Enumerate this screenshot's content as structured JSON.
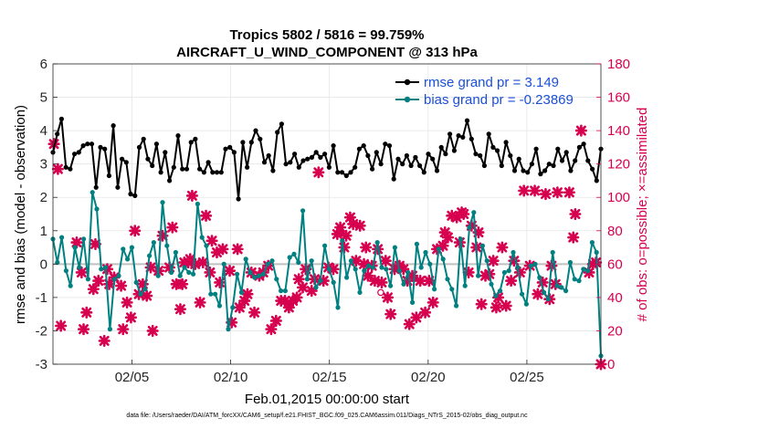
{
  "chart_data": {
    "type": "line",
    "title_line1": "Tropics 5802 / 5816 = 99.759%",
    "title_line2": "AIRCRAFT_U_WIND_COMPONENT @ 313 hPa",
    "xlabel": "Feb.01,2015 00:00:00 start",
    "ylabel_left": "rmse and bias (model - observation)",
    "ylabel_right": "# of obs: o=possible; ×=assimilated",
    "x_range_days": [
      1,
      28.75
    ],
    "ylim_left": [
      -3,
      6
    ],
    "ylim_right": [
      0,
      180
    ],
    "x_ticks": [
      {
        "day": 5,
        "label": "02/05"
      },
      {
        "day": 10,
        "label": "02/10"
      },
      {
        "day": 15,
        "label": "02/15"
      },
      {
        "day": 20,
        "label": "02/20"
      },
      {
        "day": 25,
        "label": "02/25"
      }
    ],
    "y_ticks_left": [
      "-3",
      "-2",
      "-1",
      "0",
      "1",
      "2",
      "3",
      "4",
      "5",
      "6"
    ],
    "y_ticks_right": [
      "0",
      "20",
      "40",
      "60",
      "80",
      "100",
      "120",
      "140",
      "160",
      "180"
    ],
    "series": [
      {
        "name": "rmse",
        "legend_label": "rmse grand pr = 3.149",
        "color": "#000000",
        "axis": "left",
        "values": [
          3.35,
          3.9,
          4.35,
          2.9,
          2.85,
          3.3,
          3.35,
          3.55,
          3.6,
          3.6,
          2.3,
          3.5,
          3.45,
          2.65,
          4.15,
          2.3,
          3.15,
          3.05,
          2.1,
          2.05,
          3.5,
          3.75,
          3.15,
          2.95,
          3.6,
          2.75,
          3.35,
          2.5,
          2.9,
          3.85,
          2.85,
          2.85,
          3.65,
          3.75,
          2.85,
          2.75,
          3.05,
          2.75,
          2.75,
          2.75,
          3.45,
          3.5,
          3.35,
          1.95,
          3.65,
          2.9,
          3.65,
          4.0,
          3.75,
          3.05,
          3.25,
          2.8,
          3.95,
          4.2,
          3.0,
          3.05,
          3.3,
          2.9,
          3.1,
          3.15,
          3.2,
          3.35,
          3.2,
          3.3,
          2.9,
          3.55,
          2.75,
          2.75,
          2.65,
          2.75,
          2.9,
          3.45,
          3.55,
          3.25,
          2.85,
          3.35,
          3.0,
          3.6,
          3.55,
          2.55,
          3.15,
          3.0,
          3.25,
          2.95,
          3.2,
          2.95,
          2.75,
          3.3,
          3.15,
          2.8,
          3.5,
          3.3,
          3.9,
          3.4,
          3.85,
          3.8,
          4.3,
          3.75,
          3.3,
          3.25,
          2.95,
          3.9,
          3.5,
          3.4,
          2.95,
          3.65,
          3.25,
          2.8,
          3.15,
          2.8,
          2.75,
          3.0,
          3.45,
          2.7,
          2.8,
          3.0,
          2.95,
          3.45,
          3.1,
          3.35,
          2.8,
          3.1,
          3.5,
          3.6,
          3.1,
          2.85,
          2.5,
          3.45
        ],
        "grand_value": 3.149
      },
      {
        "name": "bias",
        "legend_label": "bias grand pr = -0.23869",
        "color": "#008080",
        "axis": "left",
        "values": [
          0.75,
          0.05,
          0.8,
          -0.2,
          -0.65,
          0.5,
          -0.1,
          0.75,
          -0.45,
          2.15,
          1.65,
          -0.15,
          -0.1,
          -1.95,
          -0.45,
          -0.35,
          0.45,
          0.15,
          0.5,
          -0.55,
          -0.9,
          -0.75,
          0.25,
          0.65,
          -0.35,
          1.85,
          0.55,
          -0.25,
          0.35,
          -0.35,
          -0.1,
          -0.25,
          -0.3,
          1.8,
          0.8,
          0.55,
          -0.9,
          -0.9,
          -1.25,
          0.0,
          -1.95,
          -1.3,
          -0.3,
          -0.85,
          0.15,
          -0.25,
          -0.4,
          -0.35,
          -0.3,
          0.0,
          0.1,
          -0.45,
          -0.8,
          -0.8,
          0.2,
          0.3,
          0.05,
          1.6,
          -0.45,
          0.1,
          -0.7,
          -0.5,
          0.55,
          -0.15,
          -0.55,
          -1.3,
          0.7,
          -0.4,
          0.1,
          -0.15,
          -0.85,
          -0.2,
          -0.05,
          -0.1,
          0.65,
          -0.1,
          -0.15,
          -0.65,
          0.5,
          -0.2,
          -0.6,
          -0.25,
          -1.15,
          0.6,
          -0.1,
          0.35,
          0.0,
          -0.75,
          0.45,
          0.15,
          -0.45,
          -0.75,
          -1.25,
          0.75,
          -0.65,
          1.1,
          1.55,
          -0.35,
          0.55,
          0.1,
          -0.6,
          -0.95,
          -0.8,
          -0.25,
          -0.2,
          0.35,
          -0.1,
          -0.9,
          -1.2,
          -0.05,
          0.0,
          -0.4,
          -0.85,
          -1.05,
          0.35,
          -0.65,
          -0.7,
          -0.8,
          0.05,
          -0.45,
          -0.5,
          -0.15,
          -0.2,
          0.65,
          0.35,
          -2.75
        ],
        "grand_value": -0.23869
      },
      {
        "name": "obs_assimilated",
        "marker": "x",
        "color": "#d6004f",
        "axis": "right",
        "points": [
          [
            1.05,
            132
          ],
          [
            1.25,
            117
          ],
          [
            1.4,
            23
          ],
          [
            2.2,
            73
          ],
          [
            2.45,
            55
          ],
          [
            2.55,
            21
          ],
          [
            2.7,
            31
          ],
          [
            3.05,
            45
          ],
          [
            3.15,
            72
          ],
          [
            3.3,
            50
          ],
          [
            3.6,
            14
          ],
          [
            3.75,
            57
          ],
          [
            3.85,
            48
          ],
          [
            4.1,
            52
          ],
          [
            4.45,
            47
          ],
          [
            4.55,
            21
          ],
          [
            4.75,
            37
          ],
          [
            4.95,
            28
          ],
          [
            5.15,
            80
          ],
          [
            5.35,
            42
          ],
          [
            5.55,
            48
          ],
          [
            5.75,
            41
          ],
          [
            5.95,
            58
          ],
          [
            6.05,
            20
          ],
          [
            6.35,
            56
          ],
          [
            6.55,
            77
          ],
          [
            6.9,
            58
          ],
          [
            7.05,
            82
          ],
          [
            7.25,
            48
          ],
          [
            7.45,
            33
          ],
          [
            7.55,
            48
          ],
          [
            7.65,
            61
          ],
          [
            7.85,
            61
          ],
          [
            7.95,
            63
          ],
          [
            8.05,
            101
          ],
          [
            8.2,
            60
          ],
          [
            8.45,
            37
          ],
          [
            8.6,
            61
          ],
          [
            8.75,
            89
          ],
          [
            8.95,
            55
          ],
          [
            9.05,
            74
          ],
          [
            9.3,
            67
          ],
          [
            9.45,
            49
          ],
          [
            9.6,
            69
          ],
          [
            9.95,
            56
          ],
          [
            10.05,
            25
          ],
          [
            10.35,
            69
          ],
          [
            10.45,
            34
          ],
          [
            10.7,
            38
          ],
          [
            10.85,
            42
          ],
          [
            11.05,
            55
          ],
          [
            11.2,
            31
          ],
          [
            11.45,
            53
          ],
          [
            11.65,
            55
          ],
          [
            11.9,
            59
          ],
          [
            12.05,
            21
          ],
          [
            12.3,
            26
          ],
          [
            12.55,
            38
          ],
          [
            12.75,
            38
          ],
          [
            12.95,
            34
          ],
          [
            13.15,
            38
          ],
          [
            13.35,
            40
          ],
          [
            13.45,
            51
          ],
          [
            13.65,
            46
          ],
          [
            13.8,
            57
          ],
          [
            14.1,
            44
          ],
          [
            14.25,
            51
          ],
          [
            14.45,
            115
          ],
          [
            14.7,
            50
          ],
          [
            14.95,
            58
          ],
          [
            15.2,
            57
          ],
          [
            15.4,
            78
          ],
          [
            15.55,
            82
          ],
          [
            15.75,
            70
          ],
          [
            15.85,
            77
          ],
          [
            16.05,
            88
          ],
          [
            16.2,
            84
          ],
          [
            16.35,
            62
          ],
          [
            16.55,
            83
          ],
          [
            16.75,
            60
          ],
          [
            16.85,
            70
          ],
          [
            16.95,
            53
          ],
          [
            17.15,
            59
          ],
          [
            17.3,
            50
          ],
          [
            17.45,
            69
          ],
          [
            17.65,
            49
          ],
          [
            17.85,
            62
          ],
          [
            17.95,
            40
          ],
          [
            18.1,
            30
          ],
          [
            18.3,
            57
          ],
          [
            18.55,
            59
          ],
          [
            18.75,
            57
          ],
          [
            18.95,
            50
          ],
          [
            19.05,
            24
          ],
          [
            19.2,
            53
          ],
          [
            19.4,
            28
          ],
          [
            19.6,
            50
          ],
          [
            19.85,
            31
          ],
          [
            20.05,
            50
          ],
          [
            20.25,
            37
          ],
          [
            20.45,
            69
          ],
          [
            20.75,
            71
          ],
          [
            20.85,
            79
          ],
          [
            21.0,
            76
          ],
          [
            21.2,
            89
          ],
          [
            21.45,
            88
          ],
          [
            21.6,
            73
          ],
          [
            21.7,
            91
          ],
          [
            21.8,
            90
          ],
          [
            22.05,
            55
          ],
          [
            22.2,
            83
          ],
          [
            22.45,
            70
          ],
          [
            22.55,
            79
          ],
          [
            22.7,
            36
          ],
          [
            22.9,
            53
          ],
          [
            23.1,
            54
          ],
          [
            23.3,
            62
          ],
          [
            23.45,
            34
          ],
          [
            23.55,
            40
          ],
          [
            23.75,
            70
          ],
          [
            23.95,
            35
          ],
          [
            24.2,
            50
          ],
          [
            24.35,
            62
          ],
          [
            24.65,
            55
          ],
          [
            24.85,
            104
          ],
          [
            25.15,
            59
          ],
          [
            25.4,
            104
          ],
          [
            25.55,
            42
          ],
          [
            25.8,
            49
          ],
          [
            25.95,
            102
          ],
          [
            26.15,
            39
          ],
          [
            26.25,
            59
          ],
          [
            26.45,
            48
          ],
          [
            26.55,
            103
          ],
          [
            27.15,
            103
          ],
          [
            27.35,
            76
          ],
          [
            27.45,
            90
          ],
          [
            27.75,
            140
          ],
          [
            28.15,
            55
          ],
          [
            28.35,
            60
          ],
          [
            28.5,
            61
          ],
          [
            28.75,
            0
          ]
        ]
      },
      {
        "name": "obs_possible",
        "marker": "o",
        "color": "#d6004f",
        "axis": "right",
        "points": [
          [
            17.6,
            43
          ]
        ]
      }
    ],
    "zero_line": 0,
    "grid": true,
    "legend_position": "top-right"
  },
  "footnote": "data file: /Users/raeder/DAI/ATM_forcXX/CAM6_setup/f.e21.FHIST_BGC.f09_025.CAM6assim.011/Diags_NTrS_2015-02/obs_diag_output.nc"
}
